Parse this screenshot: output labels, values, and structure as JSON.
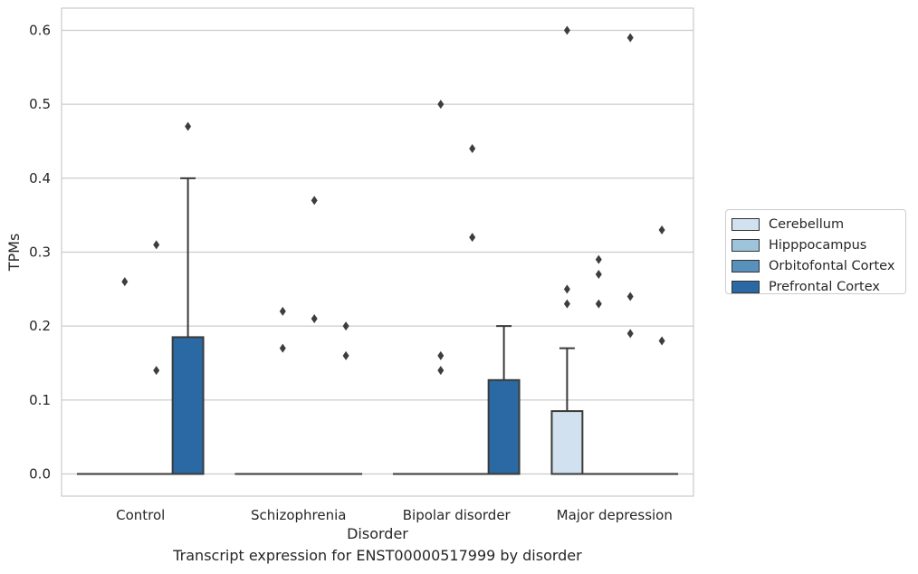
{
  "chart_data": {
    "type": "box",
    "title": "",
    "caption": "Transcript expression for ENST00000517999 by disorder",
    "xlabel": "Disorder",
    "ylabel": "TPMs",
    "ylim": [
      -0.03,
      0.63
    ],
    "yticks": [
      0.0,
      0.1,
      0.2,
      0.3,
      0.4,
      0.5,
      0.6
    ],
    "ytick_labels": [
      "0.0",
      "0.1",
      "0.2",
      "0.3",
      "0.4",
      "0.5",
      "0.6"
    ],
    "grid": "horizontal",
    "legend_position": "right-center",
    "categories": [
      "Control",
      "Schizophrenia",
      "Bipolar disorder",
      "Major depression"
    ],
    "series": [
      {
        "name": "Cerebellum",
        "color": "#d2e1f0",
        "boxes": [
          {
            "q1": 0,
            "median": 0,
            "q3": 0,
            "whislo": 0,
            "whishi": 0,
            "fliers": []
          },
          {
            "q1": 0,
            "median": 0,
            "q3": 0,
            "whislo": 0,
            "whishi": 0,
            "fliers": []
          },
          {
            "q1": 0,
            "median": 0,
            "q3": 0,
            "whislo": 0,
            "whishi": 0,
            "fliers": []
          },
          {
            "q1": 0,
            "median": 0,
            "q3": 0.085,
            "whislo": 0,
            "whishi": 0.17,
            "fliers": [
              0.6,
              0.25,
              0.23
            ]
          }
        ]
      },
      {
        "name": "Hipppocampus",
        "color": "#9ec4dc",
        "boxes": [
          {
            "q1": 0,
            "median": 0,
            "q3": 0,
            "whislo": 0,
            "whishi": 0,
            "fliers": [
              0.26
            ]
          },
          {
            "q1": 0,
            "median": 0,
            "q3": 0,
            "whislo": 0,
            "whishi": 0,
            "fliers": [
              0.22,
              0.17
            ]
          },
          {
            "q1": 0,
            "median": 0,
            "q3": 0,
            "whislo": 0,
            "whishi": 0,
            "fliers": [
              0.5,
              0.16,
              0.14
            ]
          },
          {
            "q1": 0,
            "median": 0,
            "q3": 0,
            "whislo": 0,
            "whishi": 0,
            "fliers": [
              0.29,
              0.27,
              0.23
            ]
          }
        ]
      },
      {
        "name": "Orbitofontal Cortex",
        "color": "#5791bc",
        "boxes": [
          {
            "q1": 0,
            "median": 0,
            "q3": 0,
            "whislo": 0,
            "whishi": 0,
            "fliers": [
              0.31,
              0.14
            ]
          },
          {
            "q1": 0,
            "median": 0,
            "q3": 0,
            "whislo": 0,
            "whishi": 0,
            "fliers": [
              0.37,
              0.21
            ]
          },
          {
            "q1": 0,
            "median": 0,
            "q3": 0,
            "whislo": 0,
            "whishi": 0,
            "fliers": [
              0.44,
              0.32
            ]
          },
          {
            "q1": 0,
            "median": 0,
            "q3": 0,
            "whislo": 0,
            "whishi": 0,
            "fliers": [
              0.59,
              0.24,
              0.19
            ]
          }
        ]
      },
      {
        "name": "Prefrontal Cortex",
        "color": "#2b69a4",
        "boxes": [
          {
            "q1": 0,
            "median": 0,
            "q3": 0.185,
            "whislo": 0,
            "whishi": 0.4,
            "fliers": [
              0.47
            ]
          },
          {
            "q1": 0,
            "median": 0,
            "q3": 0,
            "whislo": 0,
            "whishi": 0,
            "fliers": [
              0.2,
              0.16
            ]
          },
          {
            "q1": 0,
            "median": 0,
            "q3": 0.127,
            "whislo": 0,
            "whishi": 0.2,
            "fliers": []
          },
          {
            "q1": 0,
            "median": 0,
            "q3": 0,
            "whislo": 0,
            "whishi": 0,
            "fliers": [
              0.33,
              0.18
            ]
          }
        ]
      }
    ]
  }
}
